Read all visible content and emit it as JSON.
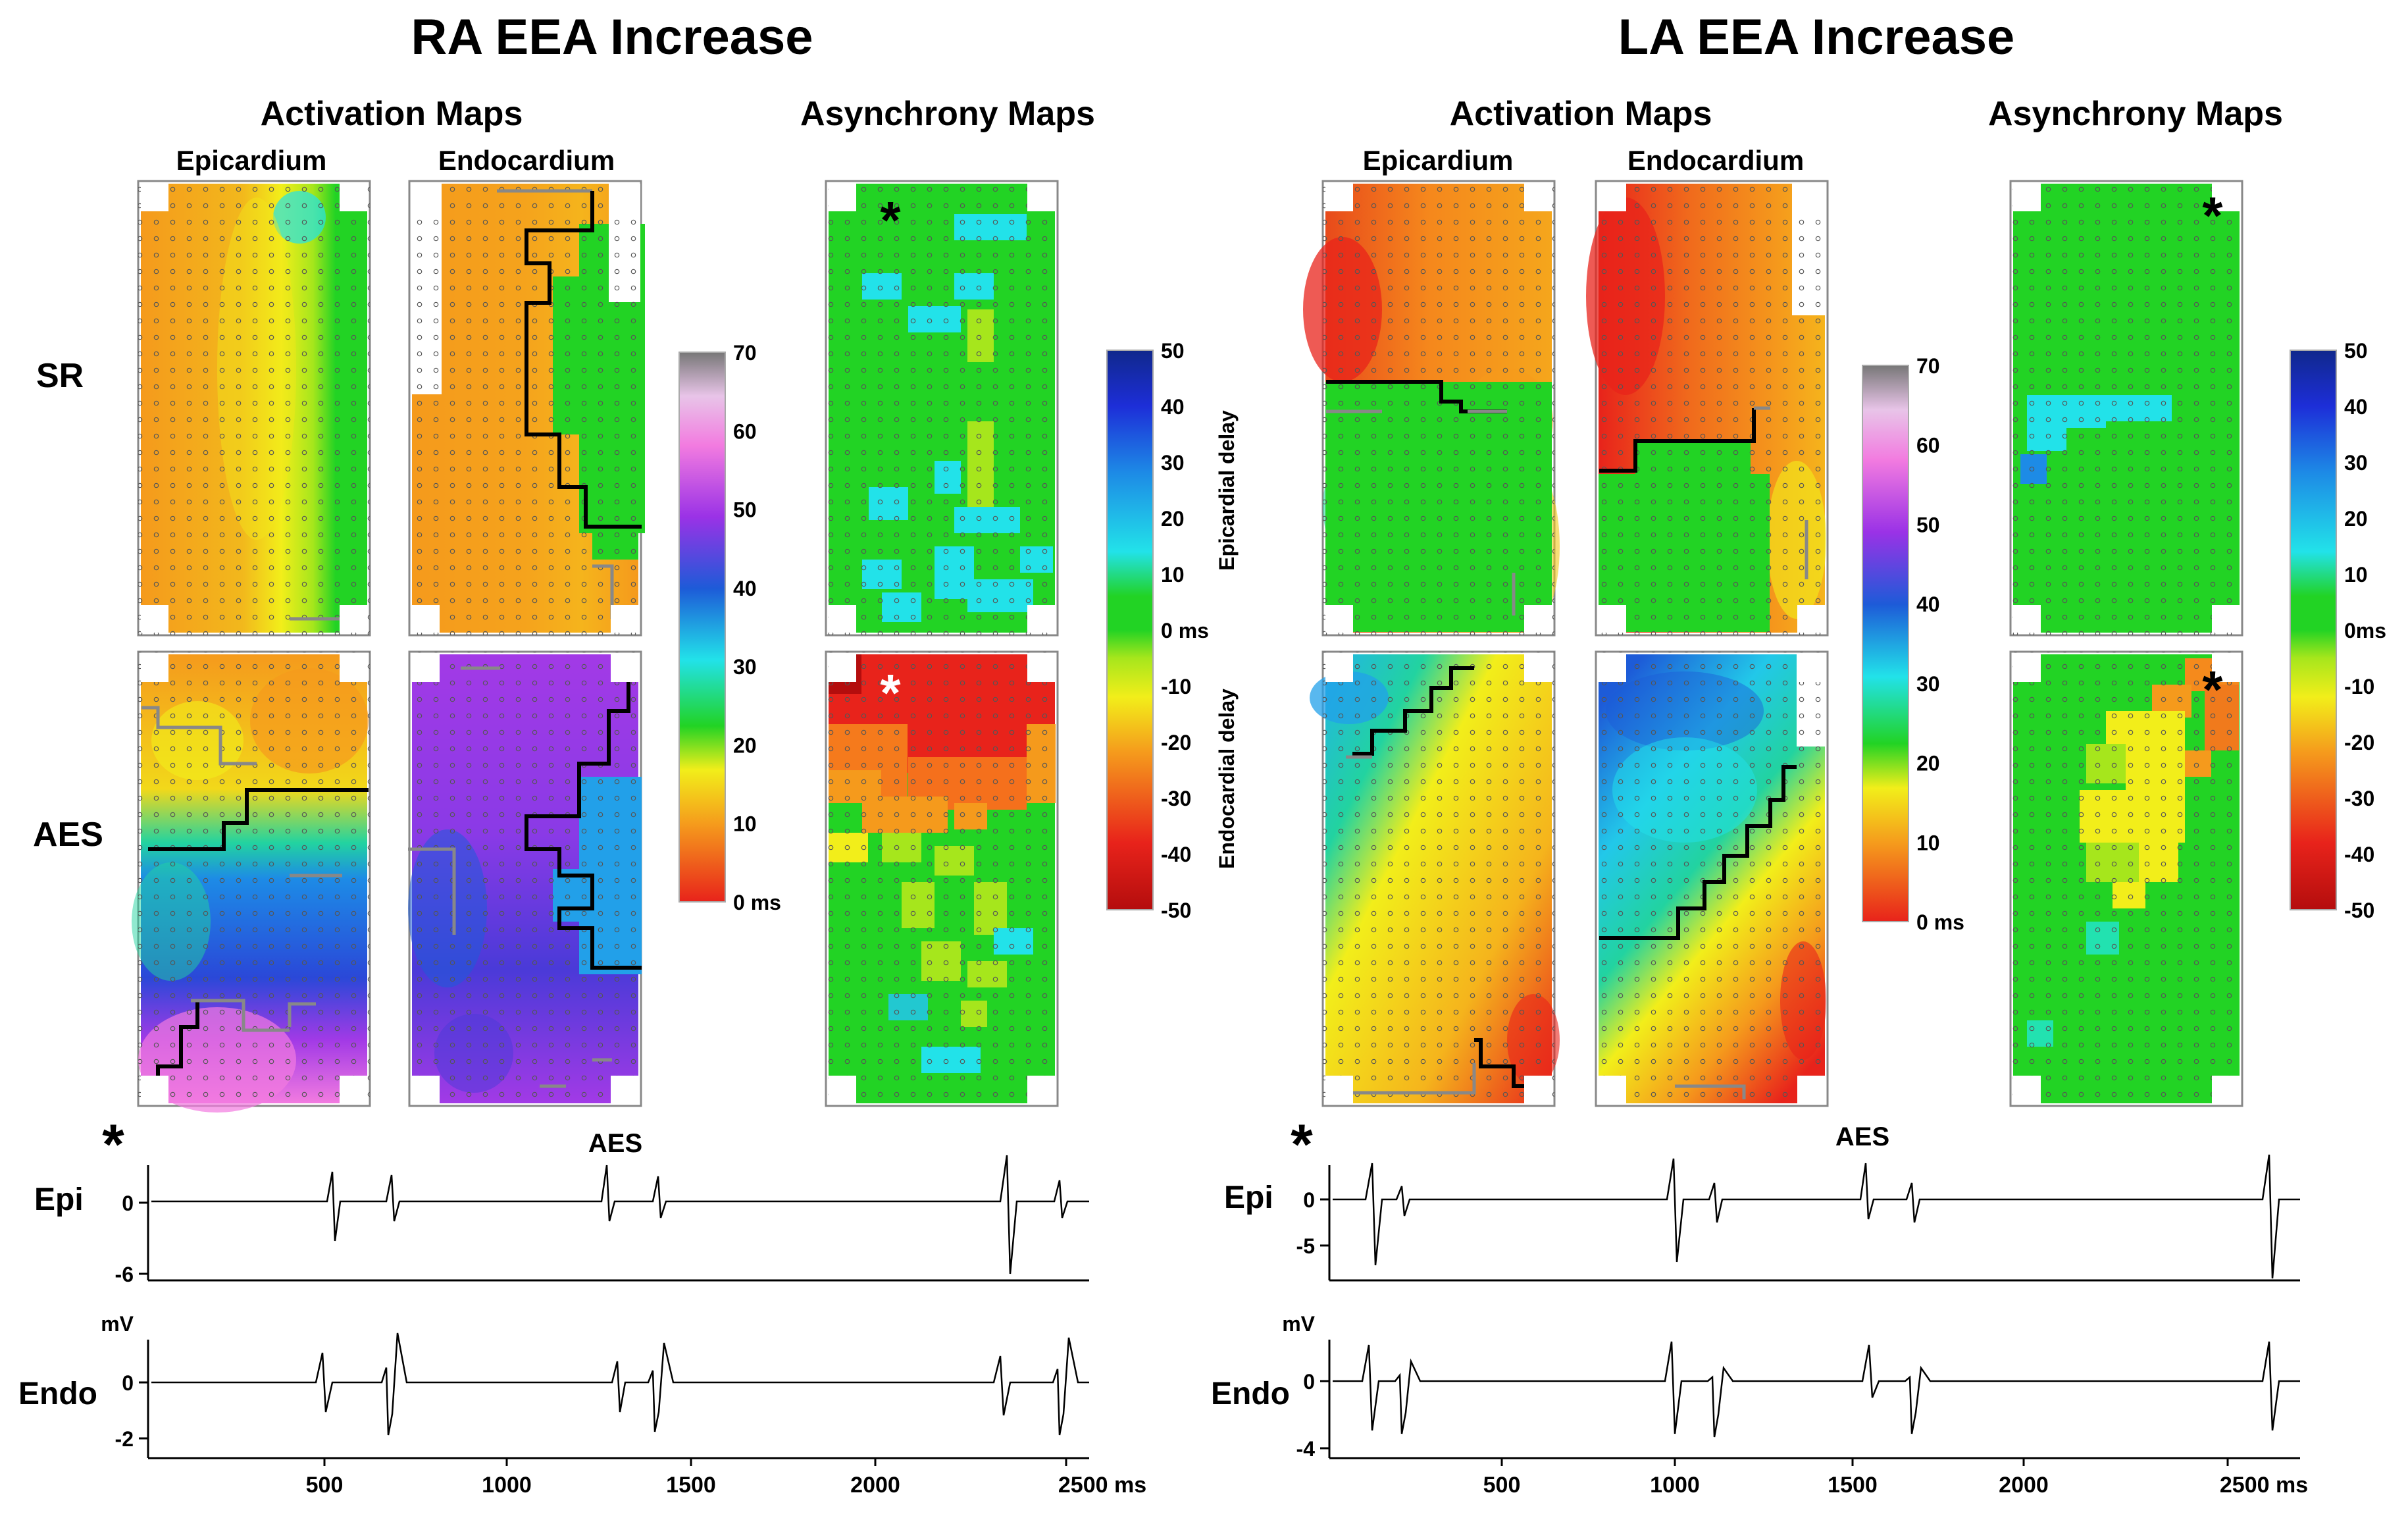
{
  "panels": [
    {
      "title": "RA EEA Increase",
      "activation_heading": "Activation Maps",
      "asynchrony_heading": "Asynchrony Maps",
      "epi_label": "Epicardium",
      "endo_label": "Endocardium",
      "row_labels": [
        "SR",
        "AES"
      ],
      "activation_scale": {
        "ticks": [
          "70",
          "60",
          "50",
          "40",
          "30",
          "20",
          "10",
          "0 ms"
        ]
      },
      "asynchrony_scale": {
        "ticks": [
          "50",
          "40",
          "30",
          "20",
          "10",
          "0 ms",
          "-10",
          "-20",
          "-30",
          "-40",
          "-50"
        ],
        "epi_label": "Epicardial delay",
        "endo_label": "Endocardial delay"
      },
      "async_star_sr": "*",
      "async_star_aes": "*",
      "trace_star": "*",
      "aes_marker": "AES",
      "epi_trace_label": "Epi",
      "endo_trace_label": "Endo",
      "epi_yticks": [
        "0",
        "-6"
      ],
      "endo_yticks": [
        "mV",
        "0",
        "-2"
      ],
      "xticks": [
        "500",
        "1000",
        "1500",
        "2000",
        "2500 ms"
      ]
    },
    {
      "title": "LA EEA Increase",
      "activation_heading": "Activation Maps",
      "asynchrony_heading": "Asynchrony Maps",
      "epi_label": "Epicardium",
      "endo_label": "Endocardium",
      "activation_scale": {
        "ticks": [
          "70",
          "60",
          "50",
          "40",
          "30",
          "20",
          "10",
          "0 ms"
        ]
      },
      "asynchrony_scale": {
        "ticks": [
          "50",
          "40",
          "30",
          "20",
          "10",
          "0ms",
          "-10",
          "-20",
          "-30",
          "-40",
          "-50"
        ]
      },
      "async_star_sr": "*",
      "async_star_aes": "*",
      "trace_star": "*",
      "aes_marker": "AES",
      "epi_trace_label": "Epi",
      "endo_trace_label": "Endo",
      "epi_yticks": [
        "0",
        "-5"
      ],
      "endo_yticks": [
        "mV",
        "0",
        "-4"
      ],
      "xticks": [
        "500",
        "1000",
        "1500",
        "2000",
        "2500 ms"
      ]
    }
  ],
  "colors": {
    "red": "#e8231b",
    "orange": "#f59a1c",
    "yellow": "#f2ee1a",
    "green": "#22d324",
    "cyan": "#22e2e9",
    "blue": "#1d5bd8",
    "purple": "#9a32e6",
    "pink": "#f27be0"
  }
}
